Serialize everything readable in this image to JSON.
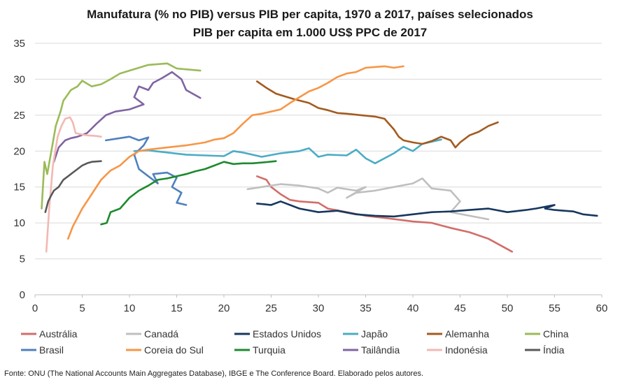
{
  "chart_data": {
    "type": "line",
    "title": "Manufatura (% no PIB) versus PIB per capita, 1970 a 2017, países selecionados",
    "subtitle": "PIB per capita em 1.000 US$ PPC de 2017",
    "xlim": [
      0,
      60
    ],
    "ylim": [
      0,
      35
    ],
    "x_ticks": [
      "0",
      "5",
      "10",
      "15",
      "20",
      "25",
      "30",
      "35",
      "40",
      "45",
      "50",
      "55",
      "60"
    ],
    "y_ticks": [
      "0",
      "5",
      "10",
      "15",
      "20",
      "25",
      "30",
      "35"
    ],
    "grid": "horizontal",
    "legend_position": "bottom",
    "series": [
      {
        "name": "Austrália",
        "color": "#d16e69",
        "points": [
          [
            23.5,
            16.5
          ],
          [
            24.5,
            16
          ],
          [
            25,
            15
          ],
          [
            26,
            14
          ],
          [
            27,
            13.2
          ],
          [
            28,
            13
          ],
          [
            30,
            12.8
          ],
          [
            31,
            12
          ],
          [
            33,
            11.5
          ],
          [
            35,
            11
          ],
          [
            37,
            10.7
          ],
          [
            40,
            10.2
          ],
          [
            42,
            10
          ],
          [
            44,
            9.3
          ],
          [
            46,
            8.7
          ],
          [
            48,
            7.8
          ],
          [
            50.5,
            6
          ]
        ]
      },
      {
        "name": "Canadá",
        "color": "#bfbfbf",
        "points": [
          [
            22.5,
            14.7
          ],
          [
            24,
            15
          ],
          [
            26,
            15.4
          ],
          [
            28,
            15.2
          ],
          [
            30,
            14.8
          ],
          [
            31,
            14.2
          ],
          [
            32,
            14.9
          ],
          [
            34,
            14.5
          ],
          [
            35,
            15
          ],
          [
            33,
            13.5
          ],
          [
            34,
            14.2
          ],
          [
            36,
            14.5
          ],
          [
            38,
            15
          ],
          [
            40,
            15.5
          ],
          [
            41,
            16.2
          ],
          [
            42,
            14.8
          ],
          [
            44,
            14.5
          ],
          [
            45,
            13
          ],
          [
            44,
            11.5
          ],
          [
            46,
            11
          ],
          [
            48,
            10.5
          ]
        ]
      },
      {
        "name": "Estados Unidos",
        "color": "#17375e",
        "points": [
          [
            23.5,
            12.7
          ],
          [
            25,
            12.5
          ],
          [
            26,
            13
          ],
          [
            28,
            12
          ],
          [
            30,
            11.5
          ],
          [
            32,
            11.7
          ],
          [
            34,
            11.2
          ],
          [
            36,
            11
          ],
          [
            38,
            10.9
          ],
          [
            40,
            11.2
          ],
          [
            42,
            11.5
          ],
          [
            44,
            11.6
          ],
          [
            46,
            11.8
          ],
          [
            48,
            12
          ],
          [
            50,
            11.5
          ],
          [
            52,
            11.8
          ],
          [
            53,
            12
          ],
          [
            55,
            12.5
          ],
          [
            54,
            12
          ],
          [
            55,
            11.8
          ],
          [
            56,
            11.7
          ],
          [
            57,
            11.6
          ],
          [
            58,
            11.2
          ],
          [
            59.5,
            11
          ]
        ]
      },
      {
        "name": "Japão",
        "color": "#4bacc6",
        "points": [
          [
            10.5,
            20
          ],
          [
            12,
            20.1
          ],
          [
            14,
            19.8
          ],
          [
            16,
            19.5
          ],
          [
            18,
            19.4
          ],
          [
            20,
            19.3
          ],
          [
            21,
            20
          ],
          [
            22,
            19.8
          ],
          [
            24,
            19.2
          ],
          [
            26,
            19.7
          ],
          [
            28,
            20
          ],
          [
            29,
            20.4
          ],
          [
            30,
            19.2
          ],
          [
            31,
            19.5
          ],
          [
            33,
            19.4
          ],
          [
            34,
            20.2
          ],
          [
            35,
            19
          ],
          [
            36,
            18.3
          ],
          [
            37,
            19
          ],
          [
            38,
            19.7
          ],
          [
            39,
            20.6
          ],
          [
            40,
            20
          ],
          [
            41,
            21
          ],
          [
            42,
            21.3
          ],
          [
            43,
            21.6
          ]
        ]
      },
      {
        "name": "Alemanha",
        "color": "#a35b1f",
        "points": [
          [
            23.5,
            29.7
          ],
          [
            24.5,
            28.8
          ],
          [
            25.5,
            28
          ],
          [
            26,
            27.8
          ],
          [
            27.5,
            27.2
          ],
          [
            29,
            26.7
          ],
          [
            30,
            26
          ],
          [
            31,
            25.7
          ],
          [
            32,
            25.3
          ],
          [
            33,
            25.2
          ],
          [
            34.5,
            25
          ],
          [
            36,
            24.8
          ],
          [
            37,
            24.5
          ],
          [
            38,
            23
          ],
          [
            38.5,
            22
          ],
          [
            39,
            21.5
          ],
          [
            40,
            21.2
          ],
          [
            41,
            21
          ],
          [
            42,
            21.4
          ],
          [
            43,
            22
          ],
          [
            44,
            21.5
          ],
          [
            44.5,
            20.5
          ],
          [
            45,
            21.2
          ],
          [
            46,
            22.2
          ],
          [
            47,
            22.7
          ],
          [
            48,
            23.5
          ],
          [
            49,
            24
          ]
        ]
      },
      {
        "name": "China",
        "color": "#9bbb59",
        "points": [
          [
            0.7,
            12
          ],
          [
            1,
            18.5
          ],
          [
            1.3,
            16.8
          ],
          [
            1.8,
            20.5
          ],
          [
            2.2,
            23.5
          ],
          [
            2.7,
            25.5
          ],
          [
            3,
            27
          ],
          [
            3.8,
            28.5
          ],
          [
            4.5,
            29
          ],
          [
            5,
            29.8
          ],
          [
            6,
            29
          ],
          [
            7,
            29.3
          ],
          [
            8,
            30
          ],
          [
            9,
            30.8
          ],
          [
            10,
            31.2
          ],
          [
            11,
            31.6
          ],
          [
            12,
            32
          ],
          [
            14,
            32.2
          ],
          [
            15,
            31.5
          ],
          [
            17.5,
            31.2
          ]
        ]
      },
      {
        "name": "Brasil",
        "color": "#4f81bd",
        "points": [
          [
            7.5,
            21.5
          ],
          [
            8.5,
            21.7
          ],
          [
            10,
            22
          ],
          [
            11,
            21.5
          ],
          [
            12,
            21.9
          ],
          [
            11.5,
            20.8
          ],
          [
            10.5,
            19.5
          ],
          [
            11,
            17.5
          ],
          [
            12,
            16.5
          ],
          [
            13,
            15.5
          ],
          [
            12.5,
            16.8
          ],
          [
            14,
            17
          ],
          [
            15,
            16.3
          ],
          [
            14.5,
            15
          ],
          [
            15.5,
            14.2
          ],
          [
            15,
            12.8
          ],
          [
            16,
            12.5
          ]
        ]
      },
      {
        "name": "Coreia do Sul",
        "color": "#f79646",
        "points": [
          [
            3.5,
            7.8
          ],
          [
            4,
            9.5
          ],
          [
            5,
            12
          ],
          [
            6,
            14
          ],
          [
            7,
            16
          ],
          [
            8,
            17.3
          ],
          [
            9,
            18
          ],
          [
            10,
            19.2
          ],
          [
            11,
            20
          ],
          [
            12,
            20.2
          ],
          [
            14,
            20.5
          ],
          [
            16,
            20.8
          ],
          [
            17,
            21
          ],
          [
            18,
            21.2
          ],
          [
            19,
            21.6
          ],
          [
            20,
            21.8
          ],
          [
            21,
            22.5
          ],
          [
            22,
            23.8
          ],
          [
            23,
            25
          ],
          [
            24,
            25.2
          ],
          [
            25,
            25.5
          ],
          [
            26,
            25.8
          ],
          [
            27,
            26.7
          ],
          [
            28,
            27.5
          ],
          [
            29,
            28.3
          ],
          [
            30,
            28.8
          ],
          [
            31,
            29.5
          ],
          [
            32,
            30.3
          ],
          [
            33,
            30.8
          ],
          [
            34,
            31
          ],
          [
            35,
            31.6
          ],
          [
            36,
            31.7
          ],
          [
            37,
            31.8
          ],
          [
            38,
            31.6
          ],
          [
            39,
            31.8
          ]
        ]
      },
      {
        "name": "Turquia",
        "color": "#1d8a2f",
        "points": [
          [
            7,
            9.8
          ],
          [
            7.6,
            10
          ],
          [
            8,
            11.5
          ],
          [
            9,
            12
          ],
          [
            10,
            13.5
          ],
          [
            11,
            14.5
          ],
          [
            12,
            15.2
          ],
          [
            13,
            16
          ],
          [
            14,
            16.2
          ],
          [
            15,
            16.5
          ],
          [
            16,
            16.8
          ],
          [
            17,
            17.2
          ],
          [
            18,
            17.5
          ],
          [
            19,
            18
          ],
          [
            20,
            18.5
          ],
          [
            21,
            18.2
          ],
          [
            22,
            18.3
          ],
          [
            23,
            18.3
          ],
          [
            24,
            18.4
          ],
          [
            25.5,
            18.6
          ]
        ]
      },
      {
        "name": "Tailândia",
        "color": "#8064a2",
        "points": [
          [
            2,
            18.5
          ],
          [
            2.5,
            20.5
          ],
          [
            3.2,
            21.5
          ],
          [
            3.8,
            21.8
          ],
          [
            4.5,
            22
          ],
          [
            5.5,
            22.5
          ],
          [
            6.5,
            23.8
          ],
          [
            7.5,
            25
          ],
          [
            8.5,
            25.5
          ],
          [
            10,
            25.8
          ],
          [
            11.5,
            26.5
          ],
          [
            10.5,
            27.5
          ],
          [
            11,
            29
          ],
          [
            12,
            28.5
          ],
          [
            12.5,
            29.5
          ],
          [
            13.5,
            30.2
          ],
          [
            14.5,
            31
          ],
          [
            15.5,
            30
          ],
          [
            16,
            28.5
          ],
          [
            17.5,
            27.4
          ]
        ]
      },
      {
        "name": "Indonésia",
        "color": "#f2b8b3",
        "points": [
          [
            1.2,
            6
          ],
          [
            1.5,
            12
          ],
          [
            1.9,
            18
          ],
          [
            2.4,
            22
          ],
          [
            2.8,
            23.5
          ],
          [
            3.2,
            24.5
          ],
          [
            3.7,
            24.7
          ],
          [
            4,
            24
          ],
          [
            4.3,
            22.5
          ],
          [
            5,
            22.3
          ],
          [
            5.5,
            22.2
          ],
          [
            6.5,
            22.1
          ],
          [
            7,
            22
          ]
        ]
      },
      {
        "name": "Índia",
        "color": "#595959",
        "points": [
          [
            1.1,
            11.5
          ],
          [
            1.4,
            13
          ],
          [
            1.7,
            13.8
          ],
          [
            2,
            14.5
          ],
          [
            2.5,
            15
          ],
          [
            3,
            16
          ],
          [
            3.5,
            16.5
          ],
          [
            4,
            17
          ],
          [
            4.5,
            17.5
          ],
          [
            5,
            18
          ],
          [
            5.5,
            18.3
          ],
          [
            6,
            18.5
          ],
          [
            7,
            18.6
          ]
        ]
      }
    ]
  },
  "source_note": "Fonte: ONU (The National Accounts Main Aggregates Database), IBGE e The Conference Board. Elaborado pelos autores."
}
